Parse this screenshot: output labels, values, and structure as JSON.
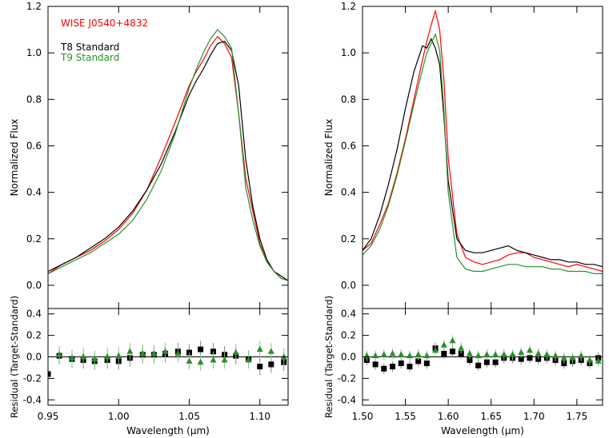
{
  "colors": {
    "target": "#ff0000",
    "t8": "#000000",
    "t9": "#2a8f2a"
  },
  "legend": {
    "target": "WISE J0540+4832",
    "t8": "T8 Standard",
    "t9": "T9 Standard"
  },
  "chart_data": [
    {
      "type": "line",
      "panel": "left-top",
      "xlim": [
        0.95,
        1.12
      ],
      "ylim": [
        -0.1,
        1.2
      ],
      "ylabel": "Normalized Flux",
      "xlabel": "",
      "yticks": [
        0.0,
        0.2,
        0.4,
        0.6,
        0.8,
        1.0,
        1.2
      ],
      "ytick_labels": [
        "0.0",
        "0.2",
        "0.4",
        "0.6",
        "0.8",
        "1.0",
        "1.2"
      ],
      "xticks": [
        0.95,
        1.0,
        1.05,
        1.1
      ],
      "series": [
        {
          "name": "WISE J0540+4832",
          "color": "#ff0000",
          "x": [
            0.95,
            0.96,
            0.97,
            0.98,
            0.99,
            1.0,
            1.01,
            1.02,
            1.03,
            1.04,
            1.05,
            1.055,
            1.06,
            1.065,
            1.07,
            1.075,
            1.08,
            1.085,
            1.09,
            1.095,
            1.1,
            1.105,
            1.11,
            1.115,
            1.12
          ],
          "y": [
            0.05,
            0.09,
            0.12,
            0.15,
            0.19,
            0.24,
            0.31,
            0.41,
            0.55,
            0.7,
            0.86,
            0.92,
            0.97,
            1.03,
            1.07,
            1.04,
            0.98,
            0.74,
            0.46,
            0.32,
            0.18,
            0.1,
            0.06,
            0.03,
            0.02
          ]
        },
        {
          "name": "T8 Standard",
          "color": "#000000",
          "x": [
            0.95,
            0.96,
            0.97,
            0.98,
            0.99,
            1.0,
            1.01,
            1.02,
            1.03,
            1.04,
            1.05,
            1.055,
            1.06,
            1.065,
            1.07,
            1.075,
            1.08,
            1.085,
            1.09,
            1.095,
            1.1,
            1.105,
            1.11,
            1.115,
            1.12
          ],
          "y": [
            0.06,
            0.09,
            0.12,
            0.16,
            0.2,
            0.25,
            0.32,
            0.41,
            0.52,
            0.66,
            0.82,
            0.88,
            0.93,
            0.99,
            1.04,
            1.05,
            1.01,
            0.86,
            0.54,
            0.34,
            0.2,
            0.11,
            0.06,
            0.04,
            0.02
          ]
        },
        {
          "name": "T9 Standard",
          "color": "#2a8f2a",
          "x": [
            0.95,
            0.96,
            0.97,
            0.98,
            0.99,
            1.0,
            1.01,
            1.02,
            1.03,
            1.04,
            1.05,
            1.055,
            1.06,
            1.065,
            1.07,
            1.075,
            1.08,
            1.085,
            1.09,
            1.095,
            1.1,
            1.105,
            1.11,
            1.115,
            1.12
          ],
          "y": [
            0.05,
            0.08,
            0.11,
            0.14,
            0.18,
            0.22,
            0.28,
            0.37,
            0.49,
            0.65,
            0.85,
            0.93,
            1.0,
            1.06,
            1.1,
            1.07,
            1.02,
            0.74,
            0.42,
            0.28,
            0.17,
            0.1,
            0.06,
            0.03,
            0.02
          ]
        }
      ]
    },
    {
      "type": "scatter",
      "panel": "left-bottom",
      "xlim": [
        0.95,
        1.12
      ],
      "ylim": [
        -0.45,
        0.45
      ],
      "ylabel": "Residual (Target-Standard)",
      "xlabel": "Wavelength (μm)",
      "yticks": [
        -0.4,
        -0.2,
        0.0,
        0.2,
        0.4
      ],
      "ytick_labels": [
        "-0.4",
        "-0.2",
        "0.0",
        "0.2",
        "0.4"
      ],
      "xticks": [
        0.95,
        1.0,
        1.05,
        1.1
      ],
      "xtick_labels": [
        "0.95",
        "1.00",
        "1.05",
        "1.10"
      ],
      "series": [
        {
          "name": "T8 Standard",
          "color": "#000000",
          "marker": "square",
          "x": [
            0.95,
            0.958,
            0.967,
            0.975,
            0.983,
            0.992,
            1.0,
            1.008,
            1.017,
            1.025,
            1.033,
            1.042,
            1.05,
            1.058,
            1.067,
            1.075,
            1.083,
            1.092,
            1.1,
            1.108,
            1.117
          ],
          "y": [
            -0.16,
            0.01,
            -0.02,
            -0.03,
            -0.04,
            -0.03,
            -0.04,
            -0.01,
            0.02,
            0.02,
            0.03,
            0.05,
            0.04,
            0.07,
            0.05,
            0.02,
            0.01,
            -0.02,
            -0.09,
            -0.07,
            -0.05
          ],
          "err": [
            0.1,
            0.08,
            0.08,
            0.08,
            0.08,
            0.08,
            0.08,
            0.08,
            0.08,
            0.08,
            0.08,
            0.08,
            0.08,
            0.08,
            0.08,
            0.08,
            0.08,
            0.08,
            0.08,
            0.08,
            0.08
          ]
        },
        {
          "name": "T9 Standard",
          "color": "#2a8f2a",
          "marker": "triangle",
          "x": [
            0.958,
            0.967,
            0.975,
            0.983,
            0.992,
            1.0,
            1.008,
            1.017,
            1.025,
            1.033,
            1.042,
            1.05,
            1.058,
            1.067,
            1.075,
            1.083,
            1.092,
            1.1,
            1.108,
            1.117
          ],
          "y": [
            0.02,
            -0.01,
            0.0,
            -0.02,
            0.0,
            0.01,
            0.05,
            0.03,
            0.03,
            0.05,
            0.03,
            -0.04,
            -0.05,
            -0.03,
            -0.03,
            0.04,
            -0.03,
            0.07,
            0.05,
            0.0
          ],
          "err": [
            0.08,
            0.08,
            0.08,
            0.08,
            0.08,
            0.08,
            0.08,
            0.08,
            0.08,
            0.08,
            0.08,
            0.08,
            0.08,
            0.08,
            0.08,
            0.08,
            0.08,
            0.08,
            0.08,
            0.08
          ]
        }
      ]
    },
    {
      "type": "line",
      "panel": "right-top",
      "xlim": [
        1.5,
        1.78
      ],
      "ylim": [
        -0.1,
        1.2
      ],
      "ylabel": "Normalized Flux",
      "xlabel": "",
      "yticks": [
        0.0,
        0.2,
        0.4,
        0.6,
        0.8,
        1.0,
        1.2
      ],
      "ytick_labels": [
        "0.0",
        "0.2",
        "0.4",
        "0.6",
        "0.8",
        "1.0",
        "1.2"
      ],
      "xticks": [
        1.5,
        1.55,
        1.6,
        1.65,
        1.7,
        1.75
      ],
      "series": [
        {
          "name": "WISE J0540+4832",
          "color": "#ff0000",
          "x": [
            1.5,
            1.51,
            1.52,
            1.53,
            1.54,
            1.55,
            1.56,
            1.57,
            1.575,
            1.58,
            1.585,
            1.59,
            1.595,
            1.6,
            1.61,
            1.62,
            1.63,
            1.64,
            1.65,
            1.66,
            1.67,
            1.68,
            1.69,
            1.7,
            1.71,
            1.72,
            1.73,
            1.74,
            1.75,
            1.76,
            1.77,
            1.78
          ],
          "y": [
            0.15,
            0.18,
            0.26,
            0.35,
            0.48,
            0.63,
            0.8,
            0.97,
            1.05,
            1.12,
            1.18,
            1.1,
            0.88,
            0.55,
            0.22,
            0.12,
            0.1,
            0.09,
            0.1,
            0.11,
            0.13,
            0.14,
            0.14,
            0.12,
            0.11,
            0.1,
            0.09,
            0.08,
            0.09,
            0.08,
            0.07,
            0.06
          ]
        },
        {
          "name": "T8 Standard",
          "color": "#000000",
          "x": [
            1.5,
            1.51,
            1.52,
            1.53,
            1.54,
            1.55,
            1.56,
            1.57,
            1.575,
            1.58,
            1.585,
            1.59,
            1.595,
            1.6,
            1.61,
            1.62,
            1.63,
            1.64,
            1.65,
            1.66,
            1.67,
            1.68,
            1.69,
            1.7,
            1.71,
            1.72,
            1.73,
            1.74,
            1.75,
            1.76,
            1.77,
            1.78
          ],
          "y": [
            0.15,
            0.2,
            0.3,
            0.43,
            0.58,
            0.76,
            0.92,
            1.03,
            1.02,
            1.06,
            1.02,
            0.95,
            0.72,
            0.45,
            0.2,
            0.15,
            0.14,
            0.14,
            0.15,
            0.16,
            0.17,
            0.15,
            0.14,
            0.13,
            0.12,
            0.11,
            0.11,
            0.1,
            0.1,
            0.09,
            0.09,
            0.08
          ]
        },
        {
          "name": "T9 Standard",
          "color": "#2a8f2a",
          "x": [
            1.5,
            1.51,
            1.52,
            1.53,
            1.54,
            1.55,
            1.56,
            1.57,
            1.575,
            1.58,
            1.585,
            1.59,
            1.595,
            1.6,
            1.61,
            1.62,
            1.63,
            1.64,
            1.65,
            1.66,
            1.67,
            1.68,
            1.69,
            1.7,
            1.71,
            1.72,
            1.73,
            1.74,
            1.75,
            1.76,
            1.77,
            1.78
          ],
          "y": [
            0.13,
            0.17,
            0.24,
            0.34,
            0.47,
            0.62,
            0.78,
            0.93,
            1.0,
            1.04,
            1.08,
            1.01,
            0.75,
            0.4,
            0.12,
            0.07,
            0.06,
            0.06,
            0.07,
            0.08,
            0.09,
            0.09,
            0.08,
            0.08,
            0.08,
            0.07,
            0.07,
            0.06,
            0.06,
            0.06,
            0.05,
            0.05
          ]
        }
      ]
    },
    {
      "type": "scatter",
      "panel": "right-bottom",
      "xlim": [
        1.5,
        1.78
      ],
      "ylim": [
        -0.45,
        0.45
      ],
      "ylabel": "Residual (Target-Standard)",
      "xlabel": "Wavelength (μm)",
      "yticks": [
        -0.4,
        -0.2,
        0.0,
        0.2,
        0.4
      ],
      "ytick_labels": [
        "-0.4",
        "-0.2",
        "0.0",
        "0.2",
        "0.4"
      ],
      "xticks": [
        1.5,
        1.55,
        1.6,
        1.65,
        1.7,
        1.75
      ],
      "xtick_labels": [
        "1.50",
        "1.55",
        "1.60",
        "1.65",
        "1.70",
        "1.75"
      ],
      "series": [
        {
          "name": "T8 Standard",
          "color": "#000000",
          "marker": "square",
          "x": [
            1.505,
            1.515,
            1.525,
            1.535,
            1.545,
            1.555,
            1.565,
            1.575,
            1.585,
            1.595,
            1.605,
            1.615,
            1.625,
            1.635,
            1.645,
            1.655,
            1.665,
            1.675,
            1.685,
            1.695,
            1.705,
            1.715,
            1.725,
            1.735,
            1.745,
            1.755,
            1.765,
            1.775
          ],
          "y": [
            -0.03,
            -0.07,
            -0.11,
            -0.09,
            -0.06,
            -0.09,
            -0.04,
            -0.06,
            0.08,
            0.03,
            0.05,
            0.03,
            -0.03,
            -0.08,
            -0.05,
            -0.05,
            -0.01,
            -0.01,
            -0.02,
            -0.01,
            -0.02,
            -0.01,
            -0.03,
            -0.06,
            -0.04,
            -0.03,
            -0.06,
            -0.01
          ],
          "err": [
            0.05,
            0.05,
            0.05,
            0.05,
            0.05,
            0.05,
            0.05,
            0.05,
            0.05,
            0.05,
            0.05,
            0.05,
            0.05,
            0.05,
            0.05,
            0.05,
            0.05,
            0.05,
            0.05,
            0.05,
            0.05,
            0.05,
            0.05,
            0.05,
            0.05,
            0.05,
            0.05,
            0.05
          ]
        },
        {
          "name": "T9 Standard",
          "color": "#2a8f2a",
          "marker": "triangle",
          "x": [
            1.505,
            1.515,
            1.525,
            1.535,
            1.545,
            1.555,
            1.565,
            1.575,
            1.585,
            1.595,
            1.605,
            1.615,
            1.625,
            1.635,
            1.645,
            1.655,
            1.665,
            1.675,
            1.685,
            1.695,
            1.705,
            1.715,
            1.725,
            1.735,
            1.745,
            1.755,
            1.765,
            1.775
          ],
          "y": [
            0.01,
            0.01,
            0.02,
            0.03,
            0.02,
            0.01,
            0.02,
            0.01,
            0.06,
            0.11,
            0.15,
            0.08,
            0.03,
            0.01,
            0.02,
            0.02,
            0.02,
            0.02,
            0.04,
            0.06,
            0.03,
            0.02,
            0.01,
            -0.01,
            -0.01,
            0.01,
            -0.03,
            -0.04
          ],
          "err": [
            0.05,
            0.05,
            0.05,
            0.05,
            0.05,
            0.05,
            0.05,
            0.05,
            0.05,
            0.05,
            0.05,
            0.05,
            0.05,
            0.05,
            0.05,
            0.05,
            0.05,
            0.05,
            0.05,
            0.05,
            0.05,
            0.05,
            0.05,
            0.05,
            0.05,
            0.05,
            0.05,
            0.05
          ]
        }
      ]
    }
  ]
}
